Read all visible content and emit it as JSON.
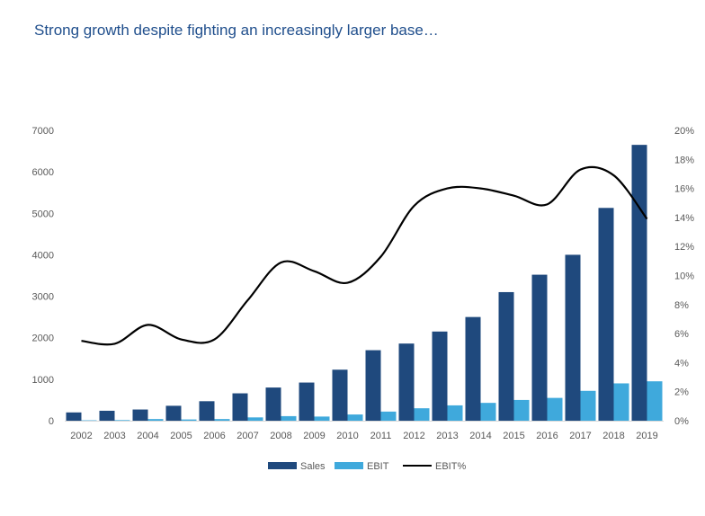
{
  "title": "Strong growth despite fighting an increasingly larger base…",
  "chart_data": {
    "type": "bar",
    "categories": [
      "2002",
      "2003",
      "2004",
      "2005",
      "2006",
      "2007",
      "2008",
      "2009",
      "2010",
      "2011",
      "2012",
      "2013",
      "2014",
      "2015",
      "2016",
      "2017",
      "2018",
      "2019"
    ],
    "series": [
      {
        "name": "Sales",
        "type": "bar",
        "axis": "left",
        "color": "#1f497d",
        "values": [
          200,
          240,
          270,
          360,
          470,
          660,
          800,
          920,
          1230,
          1700,
          1860,
          2150,
          2500,
          3100,
          3520,
          4000,
          5130,
          6650
        ]
      },
      {
        "name": "EBIT",
        "type": "bar",
        "axis": "left",
        "color": "#3fa9dc",
        "values": [
          10,
          15,
          40,
          30,
          40,
          80,
          110,
          100,
          150,
          220,
          300,
          370,
          430,
          500,
          550,
          720,
          900,
          950
        ]
      },
      {
        "name": "EBIT%",
        "type": "line",
        "axis": "right",
        "color": "#000000",
        "values": [
          5.5,
          5.3,
          6.6,
          5.6,
          5.6,
          8.3,
          10.9,
          10.3,
          9.5,
          11.3,
          14.8,
          16.0,
          16.0,
          15.5,
          14.9,
          17.3,
          16.9,
          13.9
        ]
      }
    ],
    "y_left": {
      "min": 0,
      "max": 7000,
      "ticks": [
        "0",
        "1000",
        "2000",
        "3000",
        "4000",
        "5000",
        "6000",
        "7000"
      ]
    },
    "y_right": {
      "min": 0,
      "max": 20,
      "ticks": [
        "0%",
        "2%",
        "4%",
        "6%",
        "8%",
        "10%",
        "12%",
        "14%",
        "16%",
        "18%",
        "20%"
      ]
    },
    "legend": {
      "position": "bottom",
      "items": [
        "Sales",
        "EBIT",
        "EBIT%"
      ]
    },
    "grid": false
  }
}
